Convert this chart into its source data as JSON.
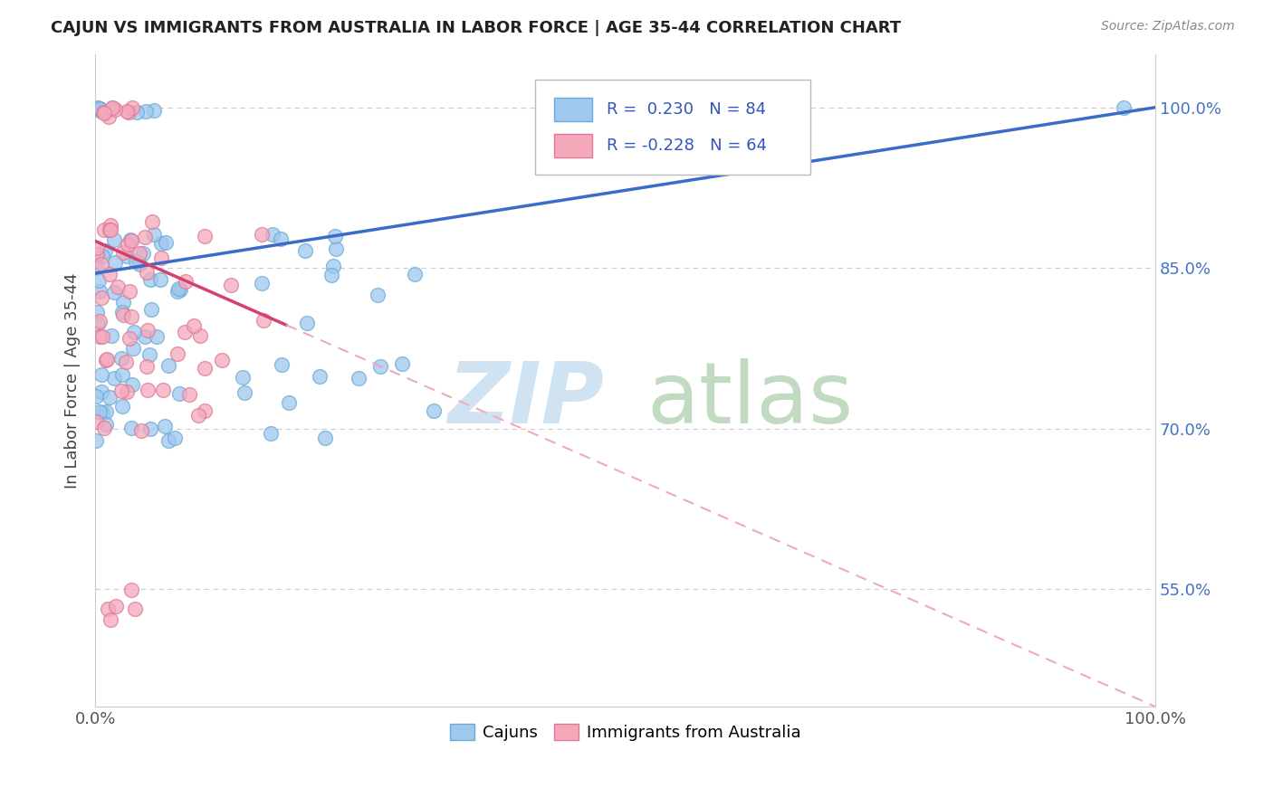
{
  "title": "CAJUN VS IMMIGRANTS FROM AUSTRALIA IN LABOR FORCE | AGE 35-44 CORRELATION CHART",
  "source": "Source: ZipAtlas.com",
  "ylabel": "In Labor Force | Age 35-44",
  "xlim": [
    0.0,
    1.0
  ],
  "ylim": [
    0.44,
    1.05
  ],
  "ytick_vals": [
    0.55,
    0.7,
    0.85,
    1.0
  ],
  "ytick_labels": [
    "55.0%",
    "70.0%",
    "85.0%",
    "100.0%"
  ],
  "xtick_vals": [
    0.0,
    1.0
  ],
  "xtick_labels": [
    "0.0%",
    "100.0%"
  ],
  "cajun_color": "#9EC8EE",
  "australia_color": "#F4A8BA",
  "cajun_edge": "#6BAAD6",
  "australia_edge": "#E07898",
  "trend_cajun_color": "#3A6CC8",
  "trend_australia_solid_color": "#D44070",
  "trend_australia_dash_color": "#F0A8C0",
  "watermark_zip_color": "#C8DFF0",
  "watermark_atlas_color": "#B8D4B8",
  "legend_R_cajun": " 0.230",
  "legend_N_cajun": "84",
  "legend_R_australia": "-0.228",
  "legend_N_australia": "64",
  "legend_text_color": "#3355BB",
  "right_tick_color": "#4472C4",
  "grid_color": "#CCCCCC",
  "title_color": "#222222",
  "source_color": "#888888",
  "ylabel_color": "#444444"
}
